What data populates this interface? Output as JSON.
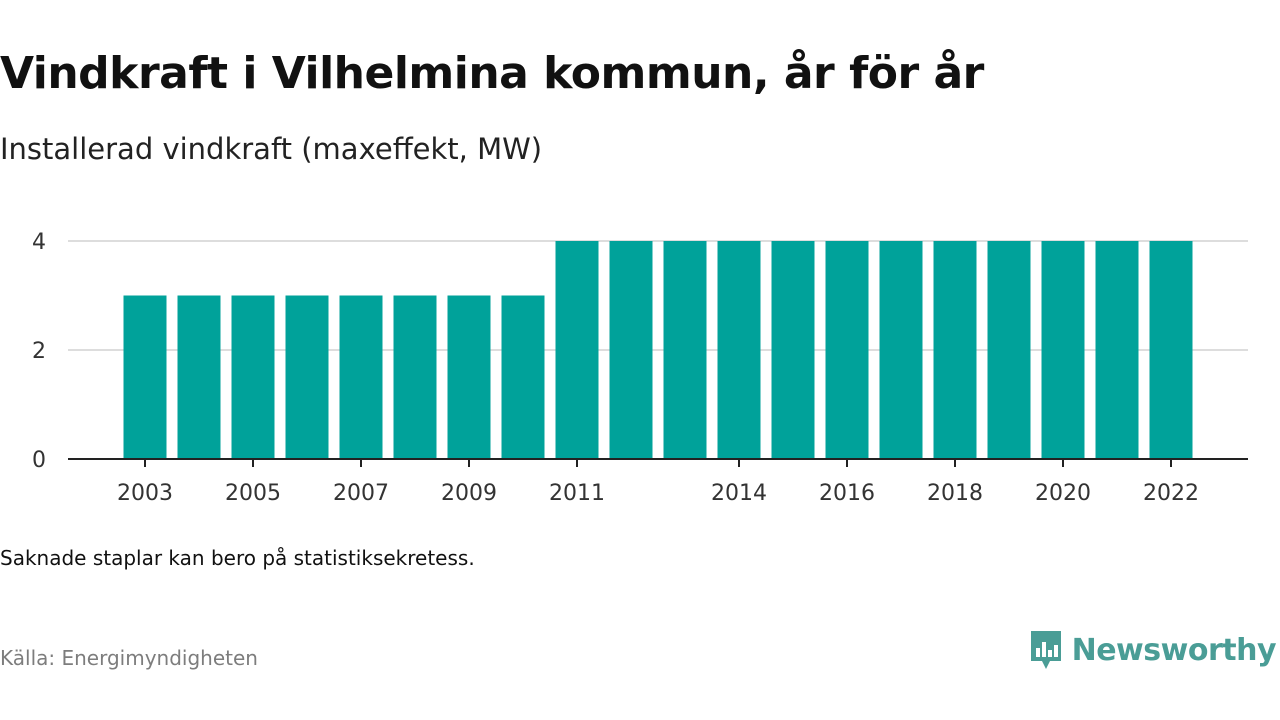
{
  "title": "Vindkraft i Vilhelmina kommun, år för år",
  "subtitle": "Installerad vindkraft (maxeffekt, MW)",
  "note": "Saknade staplar kan bero på statistiksekretess.",
  "source": "Källa: Energimyndigheten",
  "brand": {
    "name": "Newsworthy",
    "icon": "newsworthy-logo-icon",
    "color": "#4a9d96"
  },
  "chart_data": {
    "type": "bar",
    "categories": [
      "2003",
      "2004",
      "2005",
      "2006",
      "2007",
      "2008",
      "2009",
      "2010",
      "2011",
      "2012",
      "2013",
      "2014",
      "2015",
      "2016",
      "2017",
      "2018",
      "2019",
      "2020",
      "2021",
      "2022"
    ],
    "values": [
      3,
      3,
      3,
      3,
      3,
      3,
      3,
      3,
      4,
      4,
      4,
      4,
      4,
      4,
      4,
      4,
      4,
      4,
      4,
      4
    ],
    "x_tick_labels": [
      "2003",
      "2005",
      "2007",
      "2009",
      "2011",
      "2014",
      "2016",
      "2018",
      "2020",
      "2022"
    ],
    "y_ticks": [
      0,
      2,
      4
    ],
    "ylim": [
      0,
      4
    ],
    "grid": true,
    "bar_color": "#00a29a",
    "title": "Vindkraft i Vilhelmina kommun, år för år",
    "xlabel": "",
    "ylabel": "Installerad vindkraft (maxeffekt, MW)"
  }
}
